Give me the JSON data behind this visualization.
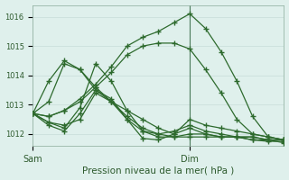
{
  "xlabel": "Pression niveau de la mer( hPa )",
  "bg_color": "#dff0ec",
  "line_color": "#2d6a2d",
  "grid_color": "#c8e8e0",
  "ylim": [
    1011.6,
    1016.4
  ],
  "xlim": [
    0,
    48
  ],
  "xtick_positions": [
    0,
    30
  ],
  "xtick_labels": [
    "Sam",
    "Dim"
  ],
  "ytick_positions": [
    1012,
    1013,
    1014,
    1015,
    1016
  ],
  "dim_line_x": 30,
  "series": [
    {
      "x": [
        0,
        3,
        6,
        9,
        12,
        15,
        18,
        21,
        24,
        27,
        30,
        33,
        36,
        39,
        42,
        45,
        48
      ],
      "y": [
        1012.7,
        1012.6,
        1012.8,
        1013.2,
        1013.7,
        1014.3,
        1015.0,
        1015.3,
        1015.5,
        1015.8,
        1016.1,
        1015.6,
        1014.8,
        1013.8,
        1012.6,
        1011.9,
        1011.8
      ]
    },
    {
      "x": [
        0,
        3,
        6,
        9,
        12,
        15,
        18,
        21,
        24,
        27,
        30,
        33,
        36,
        39,
        42,
        45,
        48
      ],
      "y": [
        1012.7,
        1012.6,
        1012.8,
        1013.1,
        1013.6,
        1014.1,
        1014.7,
        1015.0,
        1015.1,
        1015.1,
        1014.9,
        1014.2,
        1013.4,
        1012.5,
        1012.0,
        1011.9,
        1011.8
      ]
    },
    {
      "x": [
        0,
        3,
        6,
        9,
        12,
        15,
        18,
        21,
        24,
        27,
        30,
        33,
        36,
        39,
        42,
        45,
        48
      ],
      "y": [
        1012.7,
        1013.1,
        1014.4,
        1014.2,
        1013.5,
        1013.1,
        1012.8,
        1012.5,
        1012.2,
        1012.0,
        1012.5,
        1012.3,
        1012.2,
        1012.1,
        1012.0,
        1011.9,
        1011.8
      ]
    },
    {
      "x": [
        0,
        3,
        6,
        9,
        12,
        15,
        18,
        21,
        24,
        27,
        30,
        33,
        36,
        39,
        42,
        45,
        48
      ],
      "y": [
        1012.7,
        1013.8,
        1014.5,
        1014.2,
        1013.6,
        1013.1,
        1012.6,
        1012.2,
        1012.0,
        1011.9,
        1011.9,
        1011.9,
        1011.9,
        1011.9,
        1011.9,
        1011.8,
        1011.8
      ]
    },
    {
      "x": [
        0,
        3,
        6,
        9,
        12,
        15,
        18,
        21,
        24,
        27,
        30,
        33,
        36,
        39,
        42,
        45,
        48
      ],
      "y": [
        1012.7,
        1012.4,
        1012.3,
        1012.5,
        1013.4,
        1013.1,
        1012.5,
        1012.1,
        1011.9,
        1011.9,
        1012.0,
        1012.0,
        1011.9,
        1011.9,
        1011.8,
        1011.8,
        1011.8
      ]
    },
    {
      "x": [
        0,
        3,
        6,
        9,
        12,
        15,
        18,
        21,
        24,
        27,
        30,
        33,
        36,
        39,
        42,
        45,
        48
      ],
      "y": [
        1012.7,
        1012.4,
        1012.2,
        1012.9,
        1014.4,
        1013.8,
        1012.8,
        1012.1,
        1012.0,
        1012.1,
        1012.3,
        1012.1,
        1012.0,
        1011.9,
        1011.9,
        1011.8,
        1011.7
      ]
    },
    {
      "x": [
        0,
        3,
        6,
        9,
        12,
        15,
        18,
        21,
        24,
        27,
        30,
        33,
        36,
        39,
        42,
        45,
        48
      ],
      "y": [
        1012.7,
        1012.3,
        1012.1,
        1012.7,
        1013.5,
        1013.2,
        1012.5,
        1011.85,
        1011.8,
        1012.0,
        1012.2,
        1012.0,
        1011.9,
        1011.9,
        1011.8,
        1011.75,
        1011.75
      ]
    }
  ]
}
